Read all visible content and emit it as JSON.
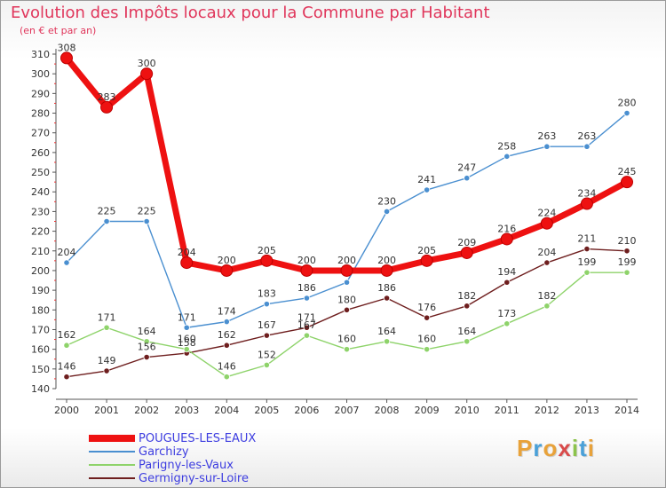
{
  "title": "Evolution des Impôts locaux pour la Commune par Habitant",
  "subtitle": "(en € et par an)",
  "logo": {
    "letters": [
      "P",
      "r",
      "o",
      "x",
      "i",
      "t",
      "i"
    ],
    "colors": [
      "#e8a23a",
      "#4aa0d8",
      "#e8a23a",
      "#d94b4b",
      "#8cc34c",
      "#4aa0d8",
      "#e8a23a"
    ]
  },
  "chart_data": {
    "type": "line",
    "title": "Evolution des Impôts locaux pour la Commune par Habitant",
    "subtitle": "(en € et par an)",
    "x": [
      "2000",
      "2001",
      "2002",
      "2003",
      "2004",
      "2005",
      "2006",
      "2007",
      "2008",
      "2009",
      "2010",
      "2011",
      "2012",
      "2013",
      "2014"
    ],
    "ylim": [
      140,
      310
    ],
    "yticks": [
      140,
      150,
      160,
      170,
      180,
      190,
      200,
      210,
      220,
      230,
      240,
      250,
      260,
      270,
      280,
      290,
      300,
      310
    ],
    "grid": false,
    "legend_position": "bottom-left",
    "series": [
      {
        "name": "POUGUES-LES-EAUX",
        "color": "#ee1111",
        "values": [
          308,
          283,
          300,
          204,
          200,
          205,
          200,
          200,
          200,
          205,
          209,
          216,
          224,
          234,
          245
        ],
        "labels": [
          "308",
          "283",
          "300",
          "204",
          "200",
          "205",
          "200",
          "200",
          "200",
          "205",
          "209",
          "216",
          "224",
          "234",
          "245"
        ]
      },
      {
        "name": "Garchizy",
        "color": "#4a8fd0",
        "values": [
          204,
          225,
          225,
          171,
          174,
          183,
          186,
          194,
          230,
          241,
          247,
          258,
          263,
          263,
          280
        ],
        "labels": [
          "204",
          "225",
          "225",
          "171",
          "174",
          "183",
          "186",
          "",
          "230",
          "241",
          "247",
          "258",
          "263",
          "263",
          "280"
        ]
      },
      {
        "name": "Parigny-les-Vaux",
        "color": "#8ed36a",
        "values": [
          162,
          171,
          164,
          160,
          146,
          152,
          167,
          160,
          164,
          160,
          164,
          173,
          182,
          199,
          199
        ],
        "labels": [
          "162",
          "171",
          "164",
          "160",
          "146",
          "152",
          "167",
          "160",
          "164",
          "160",
          "164",
          "173",
          "182",
          "199",
          "199"
        ]
      },
      {
        "name": "Germigny-sur-Loire",
        "color": "#6e1e1e",
        "values": [
          146,
          149,
          156,
          158,
          162,
          167,
          171,
          180,
          186,
          176,
          182,
          194,
          204,
          211,
          210
        ],
        "labels": [
          "146",
          "149",
          "156",
          "158",
          "162",
          "167",
          "171",
          "180",
          "186",
          "176",
          "182",
          "194",
          "204",
          "211",
          "210"
        ]
      }
    ]
  }
}
